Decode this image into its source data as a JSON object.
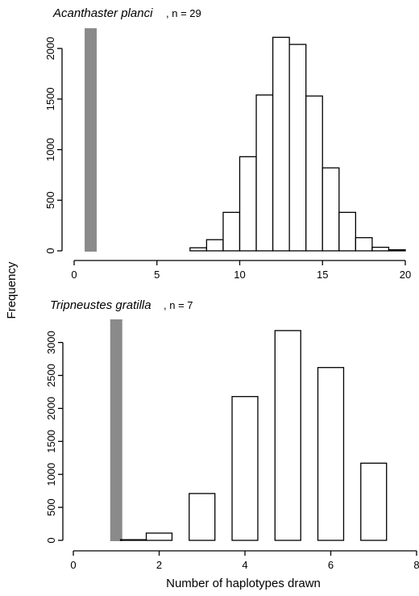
{
  "ylabel": "Frequency",
  "xlabel": "Number of haplotypes drawn",
  "chart_data": [
    {
      "type": "bar",
      "title": "Acanthaster planci",
      "subtitle": ", n = 29",
      "xlim": [
        0,
        20
      ],
      "ylim": [
        0,
        2200
      ],
      "xticks": [
        0,
        5,
        10,
        15,
        20
      ],
      "yticks": [
        0,
        500,
        1000,
        1500,
        2000
      ],
      "bin_width": 1,
      "bins": [
        {
          "start": 7,
          "value": 30
        },
        {
          "start": 8,
          "value": 110
        },
        {
          "start": 9,
          "value": 380
        },
        {
          "start": 10,
          "value": 930
        },
        {
          "start": 11,
          "value": 1540
        },
        {
          "start": 12,
          "value": 2110
        },
        {
          "start": 13,
          "value": 2040
        },
        {
          "start": 14,
          "value": 1530
        },
        {
          "start": 15,
          "value": 820
        },
        {
          "start": 16,
          "value": 380
        },
        {
          "start": 17,
          "value": 130
        },
        {
          "start": 18,
          "value": 35
        },
        {
          "start": 19,
          "value": 10
        }
      ],
      "observed": {
        "x": 1,
        "color": "#8a8a8a"
      }
    },
    {
      "type": "bar",
      "title": "Tripneustes gratilla",
      "subtitle": ", n = 7",
      "xlim": [
        0,
        8
      ],
      "ylim": [
        0,
        3350
      ],
      "xticks": [
        0,
        2,
        4,
        6,
        8
      ],
      "yticks": [
        0,
        500,
        1000,
        1500,
        2000,
        2500,
        3000
      ],
      "bin_width": 0.6,
      "bins": [
        {
          "start": 1.1,
          "value": 10
        },
        {
          "start": 1.7,
          "value": 110
        },
        {
          "start": 2.7,
          "value": 710
        },
        {
          "start": 3.7,
          "value": 2180
        },
        {
          "start": 4.7,
          "value": 3180
        },
        {
          "start": 5.7,
          "value": 2620
        },
        {
          "start": 6.7,
          "value": 1170
        }
      ],
      "observed": {
        "x": 1,
        "color": "#8a8a8a"
      }
    }
  ]
}
